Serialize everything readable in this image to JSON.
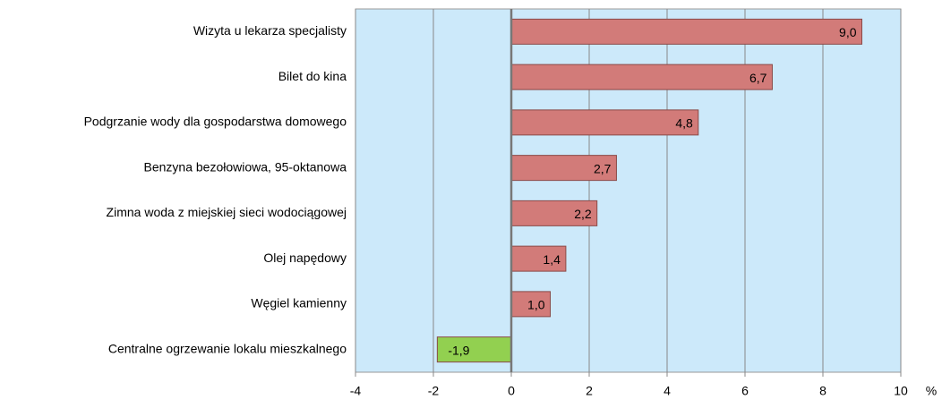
{
  "chart_data": {
    "type": "barh",
    "categories": [
      "Wizyta u lekarza specjalisty",
      "Bilet do kina",
      "Podgrzanie wody dla gospodarstwa domowego",
      "Benzyna bezołowiowa, 95-oktanowa",
      "Zimna woda z miejskiej sieci wodociągowej",
      "Olej napędowy",
      "Węgiel kamienny",
      "Centralne ogrzewanie lokalu mieszkalnego"
    ],
    "values": [
      9.0,
      6.7,
      4.8,
      2.7,
      2.2,
      1.4,
      1.0,
      -1.9
    ],
    "value_labels": [
      "9,0",
      "6,7",
      "4,8",
      "2,7",
      "2,2",
      "1,4",
      "1,0",
      "-1,9"
    ],
    "colors": [
      "#d27b79",
      "#d27b79",
      "#d27b79",
      "#d27b79",
      "#d27b79",
      "#d27b79",
      "#d27b79",
      "#92d050"
    ],
    "xlim": [
      -4,
      10
    ],
    "xticks": [
      -4,
      -2,
      0,
      2,
      4,
      6,
      8,
      10
    ],
    "xlabel": "%",
    "grid": true
  }
}
